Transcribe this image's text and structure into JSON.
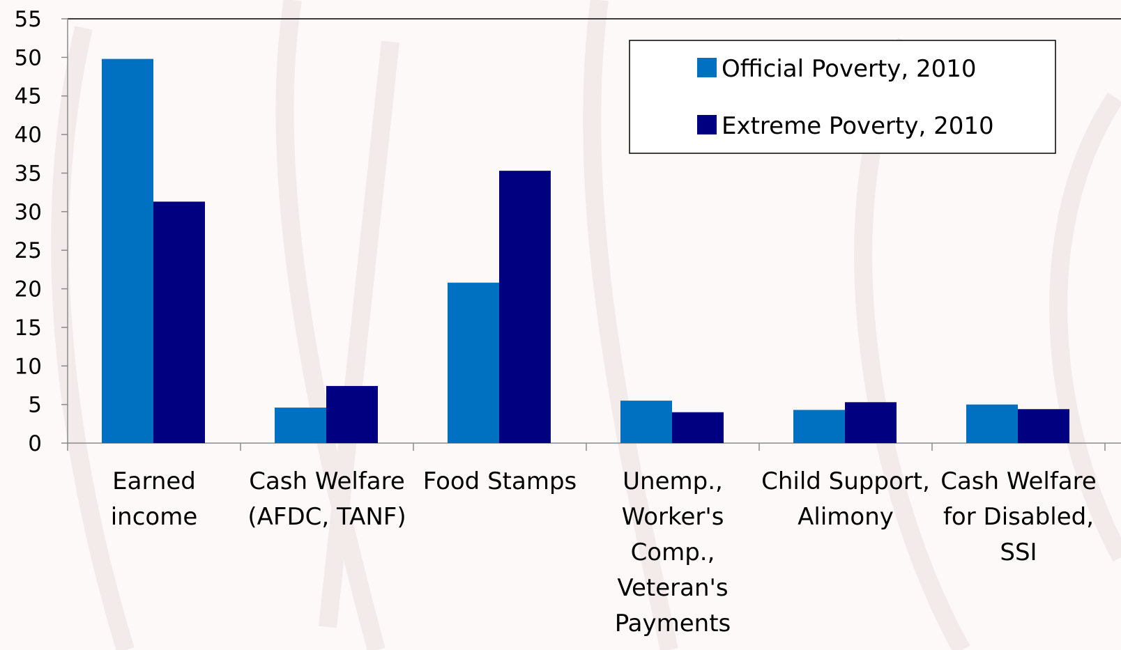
{
  "chart_data": {
    "type": "bar",
    "title": "",
    "xlabel": "",
    "ylabel": "",
    "ylim": [
      0,
      55
    ],
    "yticks": [
      0,
      5,
      10,
      15,
      20,
      25,
      30,
      35,
      40,
      45,
      50,
      55
    ],
    "grid": false,
    "legend_position": "top-right",
    "categories": [
      [
        "Earned",
        "income"
      ],
      [
        "Cash Welfare",
        "(AFDC, TANF)"
      ],
      [
        "Food Stamps"
      ],
      [
        "Unemp.,",
        "Worker's",
        "Comp.,",
        "Veteran's",
        "Payments"
      ],
      [
        "Child Support,",
        "Alimony"
      ],
      [
        "Cash Welfare",
        "for Disabled,",
        "SSI"
      ]
    ],
    "series": [
      {
        "name": "Official Poverty, 2010",
        "color": "#0070c0",
        "values": [
          49.8,
          4.6,
          20.8,
          5.5,
          4.3,
          5.0
        ]
      },
      {
        "name": "Extreme Poverty, 2010",
        "color": "#000080",
        "values": [
          31.3,
          7.4,
          35.3,
          4.0,
          5.3,
          4.4
        ]
      }
    ]
  }
}
